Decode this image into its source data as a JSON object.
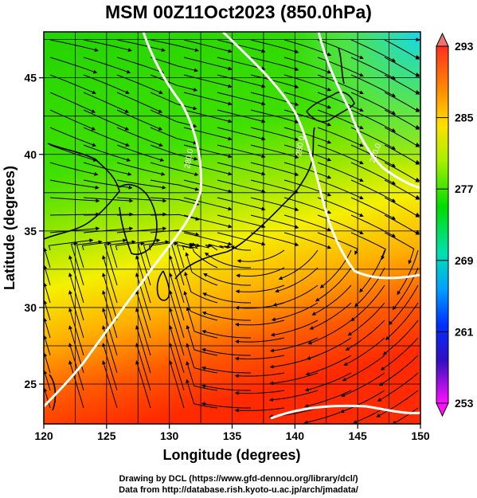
{
  "title": "MSM 00Z11Oct2023 (850.0hPa)",
  "xlabel": "Longitude (degrees)",
  "ylabel": "Latitude  (degrees)",
  "x_ticks": [
    "120",
    "125",
    "130",
    "135",
    "140",
    "145",
    "150"
  ],
  "y_ticks": [
    "25",
    "30",
    "35",
    "40",
    "45"
  ],
  "colorbar": {
    "min": 253,
    "max": 293,
    "labels": [
      "293",
      "285",
      "277",
      "269",
      "261",
      "253"
    ],
    "colors": [
      "#f08080",
      "#ff2020",
      "#ffa000",
      "#ffff00",
      "#a0f000",
      "#00e000",
      "#00e0e0",
      "#0060ff",
      "#2020c0",
      "#ff10ff"
    ]
  },
  "contour_labels": [
    "280.0",
    "280.0",
    "280.0"
  ],
  "credits": {
    "line1": "Drawing by DCL (https://www.gfd-dennou.org/library/dcl/)",
    "line2": "Data from http://database.rish.kyoto-u.ac.jp/arch/jmadata/"
  }
}
